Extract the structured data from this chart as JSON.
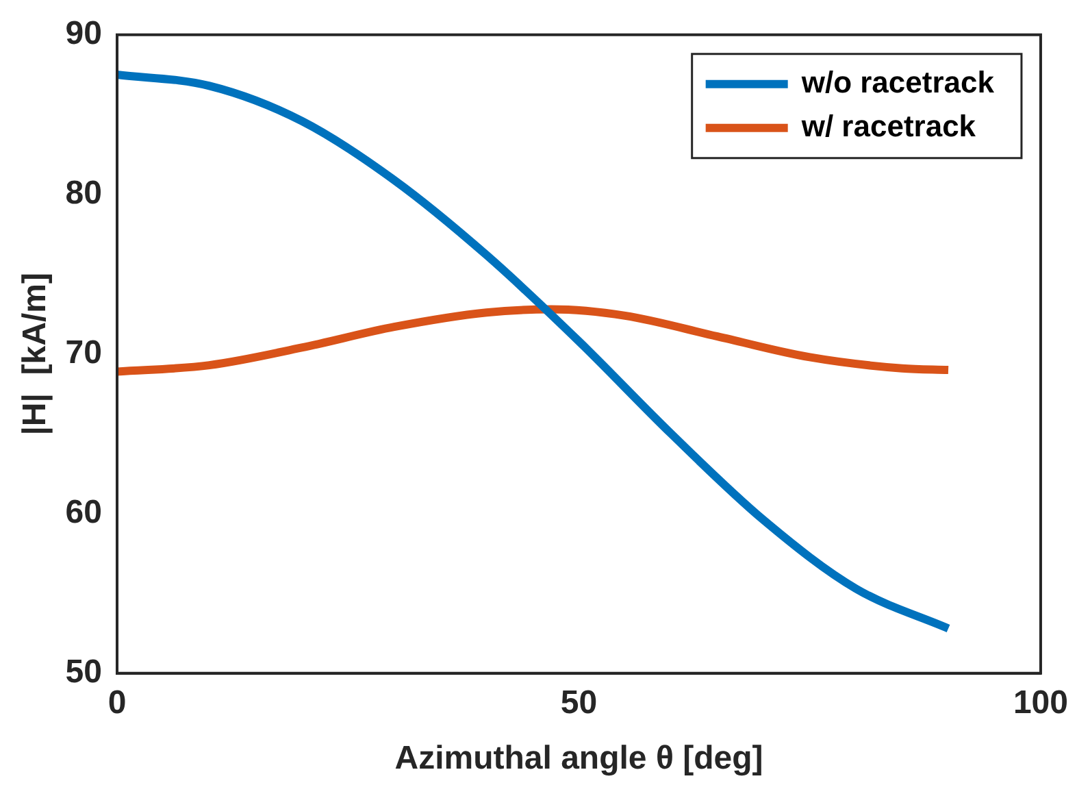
{
  "chart_data": {
    "type": "line",
    "xlabel": "Azimuthal angle θ [deg]",
    "ylabel": "|H|  [kA/m]",
    "xlim": [
      0,
      100
    ],
    "xticks": [
      0,
      50,
      100
    ],
    "ylim": [
      50,
      90
    ],
    "yticks": [
      50,
      60,
      70,
      80,
      90
    ],
    "grid": false,
    "legend": "top right",
    "marker": "none",
    "line_style": "solid",
    "series": [
      {
        "name": "w/o racetrack",
        "color": "#0072bd",
        "x": [
          0,
          10,
          20,
          30,
          40,
          50,
          60,
          70,
          80,
          90
        ],
        "values": [
          87.5,
          86.8,
          84.6,
          80.9,
          76.2,
          70.8,
          65.0,
          59.6,
          55.3,
          52.8
        ]
      },
      {
        "name": "w/ racetrack",
        "color": "#d95319",
        "x": [
          0,
          10,
          20,
          30,
          40,
          47,
          55,
          65,
          75,
          85,
          90
        ],
        "values": [
          68.9,
          69.3,
          70.4,
          71.7,
          72.6,
          72.8,
          72.4,
          71.1,
          69.8,
          69.1,
          69.0
        ]
      }
    ]
  }
}
